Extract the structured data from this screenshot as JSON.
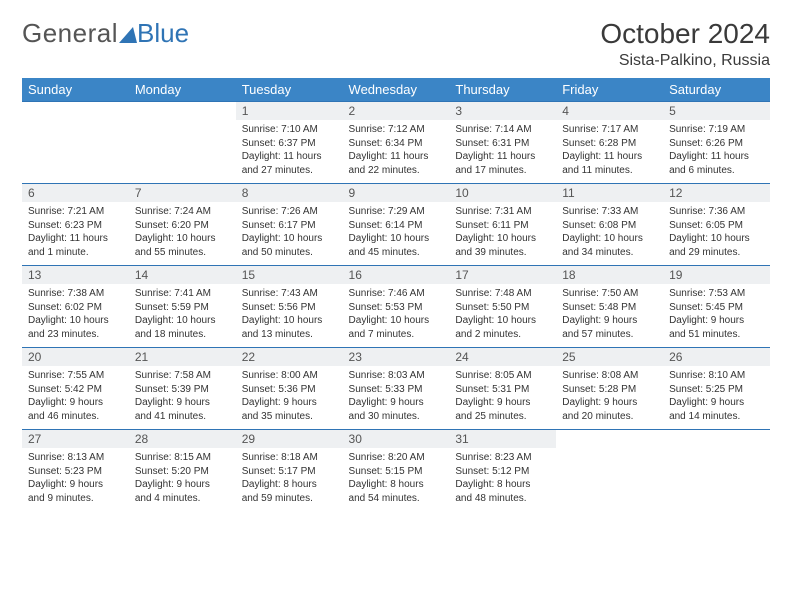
{
  "logo": {
    "text1": "General",
    "text2": "Blue"
  },
  "title": {
    "month": "October 2024",
    "location": "Sista-Palkino, Russia"
  },
  "colors": {
    "accent": "#3b85c6",
    "border": "#2f74b5",
    "numbg": "#eef0f2"
  },
  "dayHeaders": [
    "Sunday",
    "Monday",
    "Tuesday",
    "Wednesday",
    "Thursday",
    "Friday",
    "Saturday"
  ],
  "weeks": [
    [
      {
        "empty": true
      },
      {
        "empty": true
      },
      {
        "num": "1",
        "sunrise": "Sunrise: 7:10 AM",
        "sunset": "Sunset: 6:37 PM",
        "day1": "Daylight: 11 hours",
        "day2": "and 27 minutes."
      },
      {
        "num": "2",
        "sunrise": "Sunrise: 7:12 AM",
        "sunset": "Sunset: 6:34 PM",
        "day1": "Daylight: 11 hours",
        "day2": "and 22 minutes."
      },
      {
        "num": "3",
        "sunrise": "Sunrise: 7:14 AM",
        "sunset": "Sunset: 6:31 PM",
        "day1": "Daylight: 11 hours",
        "day2": "and 17 minutes."
      },
      {
        "num": "4",
        "sunrise": "Sunrise: 7:17 AM",
        "sunset": "Sunset: 6:28 PM",
        "day1": "Daylight: 11 hours",
        "day2": "and 11 minutes."
      },
      {
        "num": "5",
        "sunrise": "Sunrise: 7:19 AM",
        "sunset": "Sunset: 6:26 PM",
        "day1": "Daylight: 11 hours",
        "day2": "and 6 minutes."
      }
    ],
    [
      {
        "num": "6",
        "sunrise": "Sunrise: 7:21 AM",
        "sunset": "Sunset: 6:23 PM",
        "day1": "Daylight: 11 hours",
        "day2": "and 1 minute."
      },
      {
        "num": "7",
        "sunrise": "Sunrise: 7:24 AM",
        "sunset": "Sunset: 6:20 PM",
        "day1": "Daylight: 10 hours",
        "day2": "and 55 minutes."
      },
      {
        "num": "8",
        "sunrise": "Sunrise: 7:26 AM",
        "sunset": "Sunset: 6:17 PM",
        "day1": "Daylight: 10 hours",
        "day2": "and 50 minutes."
      },
      {
        "num": "9",
        "sunrise": "Sunrise: 7:29 AM",
        "sunset": "Sunset: 6:14 PM",
        "day1": "Daylight: 10 hours",
        "day2": "and 45 minutes."
      },
      {
        "num": "10",
        "sunrise": "Sunrise: 7:31 AM",
        "sunset": "Sunset: 6:11 PM",
        "day1": "Daylight: 10 hours",
        "day2": "and 39 minutes."
      },
      {
        "num": "11",
        "sunrise": "Sunrise: 7:33 AM",
        "sunset": "Sunset: 6:08 PM",
        "day1": "Daylight: 10 hours",
        "day2": "and 34 minutes."
      },
      {
        "num": "12",
        "sunrise": "Sunrise: 7:36 AM",
        "sunset": "Sunset: 6:05 PM",
        "day1": "Daylight: 10 hours",
        "day2": "and 29 minutes."
      }
    ],
    [
      {
        "num": "13",
        "sunrise": "Sunrise: 7:38 AM",
        "sunset": "Sunset: 6:02 PM",
        "day1": "Daylight: 10 hours",
        "day2": "and 23 minutes."
      },
      {
        "num": "14",
        "sunrise": "Sunrise: 7:41 AM",
        "sunset": "Sunset: 5:59 PM",
        "day1": "Daylight: 10 hours",
        "day2": "and 18 minutes."
      },
      {
        "num": "15",
        "sunrise": "Sunrise: 7:43 AM",
        "sunset": "Sunset: 5:56 PM",
        "day1": "Daylight: 10 hours",
        "day2": "and 13 minutes."
      },
      {
        "num": "16",
        "sunrise": "Sunrise: 7:46 AM",
        "sunset": "Sunset: 5:53 PM",
        "day1": "Daylight: 10 hours",
        "day2": "and 7 minutes."
      },
      {
        "num": "17",
        "sunrise": "Sunrise: 7:48 AM",
        "sunset": "Sunset: 5:50 PM",
        "day1": "Daylight: 10 hours",
        "day2": "and 2 minutes."
      },
      {
        "num": "18",
        "sunrise": "Sunrise: 7:50 AM",
        "sunset": "Sunset: 5:48 PM",
        "day1": "Daylight: 9 hours",
        "day2": "and 57 minutes."
      },
      {
        "num": "19",
        "sunrise": "Sunrise: 7:53 AM",
        "sunset": "Sunset: 5:45 PM",
        "day1": "Daylight: 9 hours",
        "day2": "and 51 minutes."
      }
    ],
    [
      {
        "num": "20",
        "sunrise": "Sunrise: 7:55 AM",
        "sunset": "Sunset: 5:42 PM",
        "day1": "Daylight: 9 hours",
        "day2": "and 46 minutes."
      },
      {
        "num": "21",
        "sunrise": "Sunrise: 7:58 AM",
        "sunset": "Sunset: 5:39 PM",
        "day1": "Daylight: 9 hours",
        "day2": "and 41 minutes."
      },
      {
        "num": "22",
        "sunrise": "Sunrise: 8:00 AM",
        "sunset": "Sunset: 5:36 PM",
        "day1": "Daylight: 9 hours",
        "day2": "and 35 minutes."
      },
      {
        "num": "23",
        "sunrise": "Sunrise: 8:03 AM",
        "sunset": "Sunset: 5:33 PM",
        "day1": "Daylight: 9 hours",
        "day2": "and 30 minutes."
      },
      {
        "num": "24",
        "sunrise": "Sunrise: 8:05 AM",
        "sunset": "Sunset: 5:31 PM",
        "day1": "Daylight: 9 hours",
        "day2": "and 25 minutes."
      },
      {
        "num": "25",
        "sunrise": "Sunrise: 8:08 AM",
        "sunset": "Sunset: 5:28 PM",
        "day1": "Daylight: 9 hours",
        "day2": "and 20 minutes."
      },
      {
        "num": "26",
        "sunrise": "Sunrise: 8:10 AM",
        "sunset": "Sunset: 5:25 PM",
        "day1": "Daylight: 9 hours",
        "day2": "and 14 minutes."
      }
    ],
    [
      {
        "num": "27",
        "sunrise": "Sunrise: 8:13 AM",
        "sunset": "Sunset: 5:23 PM",
        "day1": "Daylight: 9 hours",
        "day2": "and 9 minutes."
      },
      {
        "num": "28",
        "sunrise": "Sunrise: 8:15 AM",
        "sunset": "Sunset: 5:20 PM",
        "day1": "Daylight: 9 hours",
        "day2": "and 4 minutes."
      },
      {
        "num": "29",
        "sunrise": "Sunrise: 8:18 AM",
        "sunset": "Sunset: 5:17 PM",
        "day1": "Daylight: 8 hours",
        "day2": "and 59 minutes."
      },
      {
        "num": "30",
        "sunrise": "Sunrise: 8:20 AM",
        "sunset": "Sunset: 5:15 PM",
        "day1": "Daylight: 8 hours",
        "day2": "and 54 minutes."
      },
      {
        "num": "31",
        "sunrise": "Sunrise: 8:23 AM",
        "sunset": "Sunset: 5:12 PM",
        "day1": "Daylight: 8 hours",
        "day2": "and 48 minutes."
      },
      {
        "empty": true
      },
      {
        "empty": true
      }
    ]
  ]
}
